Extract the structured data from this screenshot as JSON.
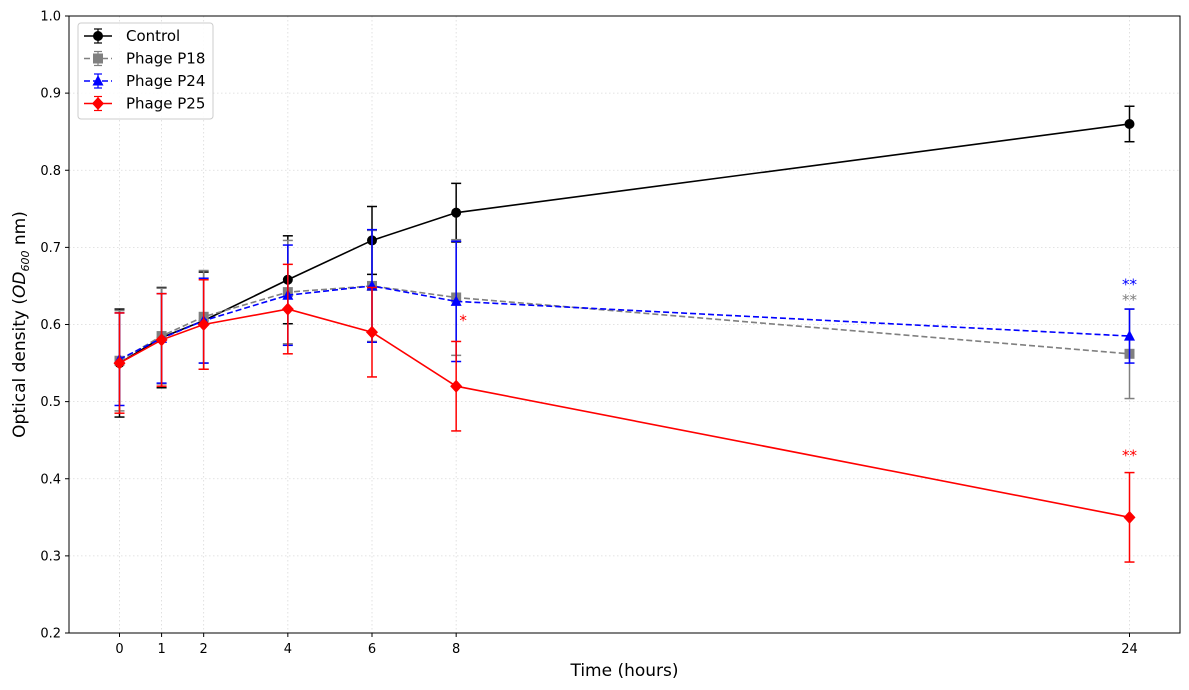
{
  "chart_data": {
    "type": "line",
    "title": "",
    "xlabel": "Time (hours)",
    "ylabel": "Optical density (OD600 nm)",
    "ylabel_parts": {
      "prefix": "Optical density (",
      "od": "OD",
      "sub": "600",
      "suffix": " nm)"
    },
    "x": [
      0,
      1,
      2,
      4,
      6,
      8,
      24
    ],
    "x_ticks": [
      "0",
      "1",
      "2",
      "4",
      "6",
      "8",
      "24"
    ],
    "xlim": [
      -1.2,
      25.2
    ],
    "ylim": [
      0.2,
      1.0
    ],
    "y_ticks": [
      "0.2",
      "0.3",
      "0.4",
      "0.5",
      "0.6",
      "0.7",
      "0.8",
      "0.9",
      "1.0"
    ],
    "grid": true,
    "legend_position": "top-left",
    "series": [
      {
        "name": "Control",
        "color": "#000000",
        "linestyle": "solid",
        "marker": "circle",
        "values": [
          0.55,
          0.583,
          0.605,
          0.658,
          0.709,
          0.745,
          0.86
        ],
        "errors": [
          0.07,
          0.065,
          0.063,
          0.057,
          0.044,
          0.038,
          0.023
        ]
      },
      {
        "name": "Phage P18",
        "color": "#808080",
        "linestyle": "dashed",
        "marker": "square",
        "values": [
          0.553,
          0.585,
          0.61,
          0.642,
          0.65,
          0.635,
          0.562
        ],
        "errors": [
          0.065,
          0.062,
          0.06,
          0.067,
          0.072,
          0.075,
          0.058
        ]
      },
      {
        "name": "Phage P24",
        "color": "#0000ff",
        "linestyle": "dashed",
        "marker": "triangle",
        "values": [
          0.555,
          0.582,
          0.605,
          0.638,
          0.65,
          0.63,
          0.585
        ],
        "errors": [
          0.06,
          0.058,
          0.055,
          0.065,
          0.073,
          0.078,
          0.035
        ]
      },
      {
        "name": "Phage P25",
        "color": "#ff0000",
        "linestyle": "solid",
        "marker": "diamond",
        "values": [
          0.55,
          0.58,
          0.6,
          0.62,
          0.59,
          0.52,
          0.35
        ],
        "errors": [
          0.065,
          0.06,
          0.058,
          0.058,
          0.058,
          0.058,
          0.058
        ]
      }
    ],
    "annotations": [
      {
        "text": "*",
        "x": 8,
        "y": 0.605,
        "color": "#ff0000"
      },
      {
        "text": "**",
        "x": 24,
        "y": 0.652,
        "color": "#0000ff"
      },
      {
        "text": "**",
        "x": 24,
        "y": 0.632,
        "color": "#808080"
      },
      {
        "text": "**",
        "x": 24,
        "y": 0.43,
        "color": "#ff0000"
      }
    ]
  }
}
